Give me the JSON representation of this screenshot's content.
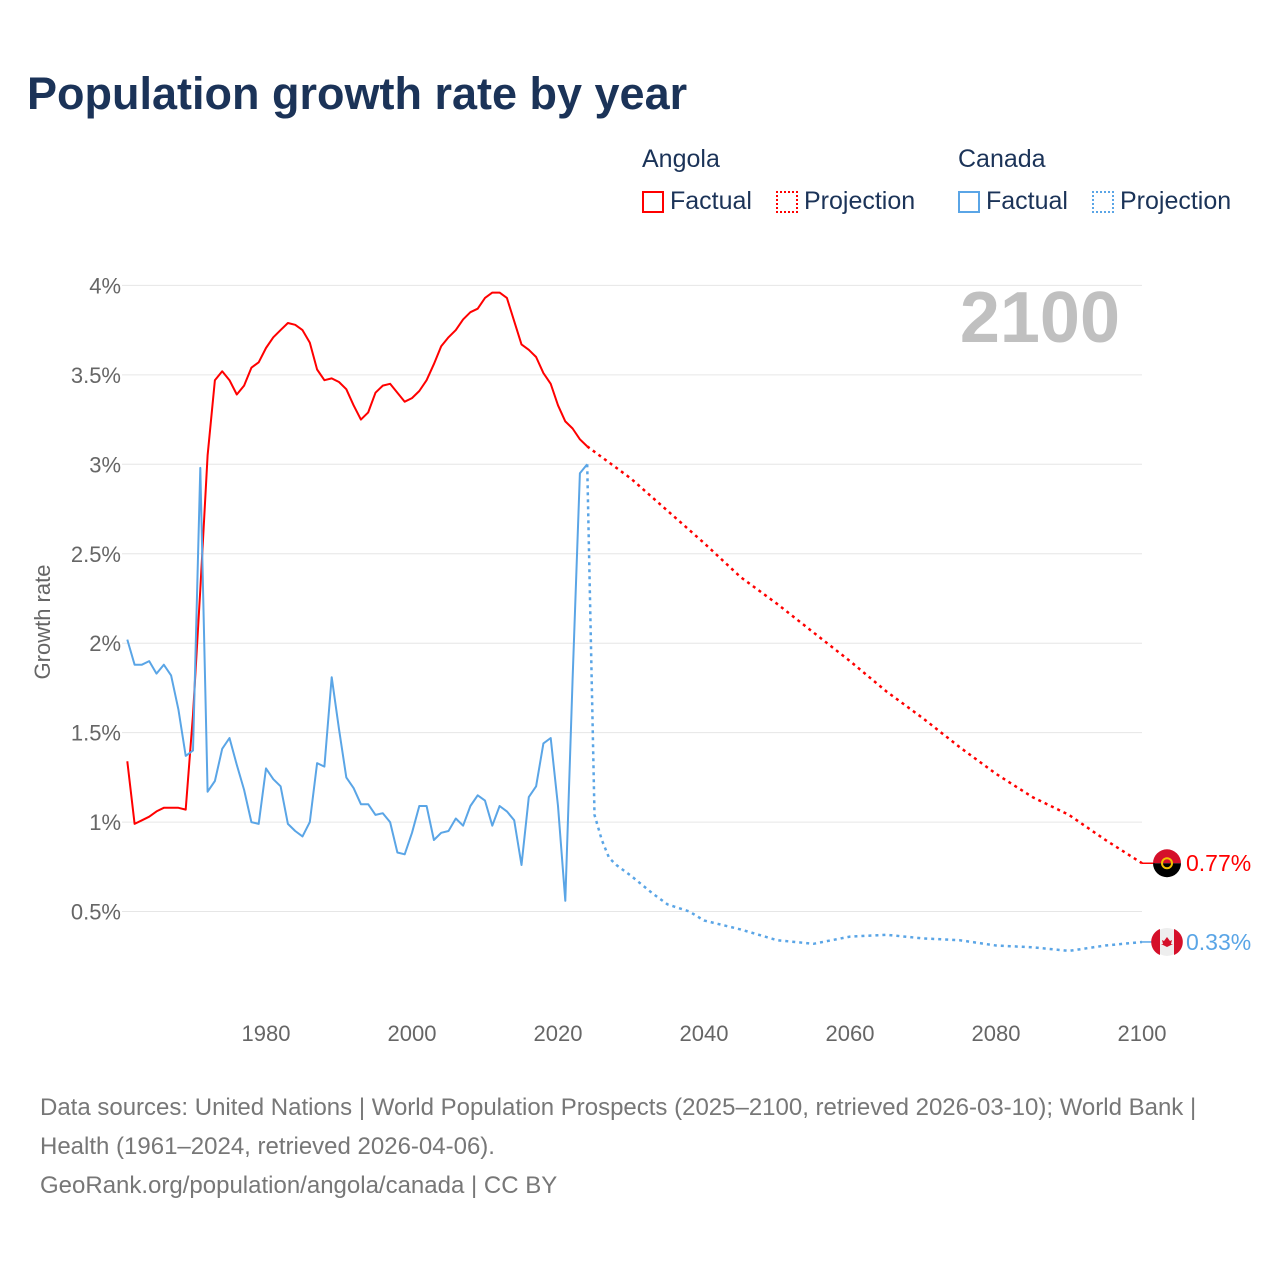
{
  "title": "Population growth rate by year",
  "legend": {
    "groups": [
      {
        "name": "Angola",
        "factual": "Factual",
        "projection": "Projection",
        "color": "#ff0000"
      },
      {
        "name": "Canada",
        "factual": "Factual",
        "projection": "Projection",
        "color": "#5aa5e6"
      }
    ]
  },
  "year_label": "2100",
  "footer": {
    "sources": "Data sources: United Nations | World Population Prospects (2025–2100, retrieved 2026-03-10); World Bank | Health (1961–2024, retrieved 2026-04-06).",
    "link": "GeoRank.org/population/angola/canada | CC BY"
  },
  "chart_data": {
    "type": "line",
    "ylabel": "Growth rate",
    "xlabel": "",
    "xlim": [
      1960,
      2100
    ],
    "ylim": [
      0,
      4
    ],
    "x_ticks": [
      "1980",
      "2000",
      "2020",
      "2040",
      "2060",
      "2080",
      "2100"
    ],
    "y_ticks": [
      "0.5%",
      "1%",
      "1.5%",
      "2%",
      "2.5%",
      "3%",
      "3.5%",
      "4%"
    ],
    "grid": true,
    "series": [
      {
        "name": "Angola",
        "color": "#ff0000",
        "end_label": "0.77%",
        "factual_start": 1961,
        "factual": [
          1.34,
          0.99,
          1.01,
          1.03,
          1.06,
          1.08,
          1.08,
          1.08,
          1.07,
          1.6,
          2.3,
          3.05,
          3.47,
          3.52,
          3.47,
          3.39,
          3.44,
          3.54,
          3.57,
          3.65,
          3.71,
          3.75,
          3.79,
          3.78,
          3.75,
          3.68,
          3.53,
          3.47,
          3.48,
          3.46,
          3.42,
          3.33,
          3.25,
          3.29,
          3.4,
          3.44,
          3.45,
          3.4,
          3.35,
          3.37,
          3.41,
          3.47,
          3.56,
          3.66,
          3.71,
          3.75,
          3.81,
          3.85,
          3.87,
          3.93,
          3.96,
          3.96,
          3.93,
          3.8,
          3.67,
          3.64,
          3.6,
          3.51,
          3.45,
          3.33,
          3.24,
          3.2,
          3.14,
          3.1
        ],
        "projection": [
          [
            2024,
            3.1
          ],
          [
            2025,
            3.07
          ],
          [
            2030,
            2.92
          ],
          [
            2035,
            2.74
          ],
          [
            2040,
            2.56
          ],
          [
            2045,
            2.37
          ],
          [
            2050,
            2.22
          ],
          [
            2055,
            2.06
          ],
          [
            2060,
            1.9
          ],
          [
            2065,
            1.73
          ],
          [
            2070,
            1.58
          ],
          [
            2075,
            1.42
          ],
          [
            2080,
            1.27
          ],
          [
            2085,
            1.14
          ],
          [
            2090,
            1.04
          ],
          [
            2095,
            0.9
          ],
          [
            2100,
            0.77
          ]
        ]
      },
      {
        "name": "Canada",
        "color": "#5aa5e6",
        "end_label": "0.33%",
        "factual_start": 1961,
        "factual": [
          2.02,
          1.88,
          1.88,
          1.9,
          1.83,
          1.88,
          1.82,
          1.63,
          1.37,
          1.4,
          2.98,
          1.17,
          1.23,
          1.41,
          1.47,
          1.32,
          1.18,
          1.0,
          0.99,
          1.3,
          1.24,
          1.2,
          0.99,
          0.95,
          0.92,
          1.0,
          1.33,
          1.31,
          1.81,
          1.52,
          1.25,
          1.19,
          1.1,
          1.1,
          1.04,
          1.05,
          1.0,
          0.83,
          0.82,
          0.94,
          1.09,
          1.09,
          0.9,
          0.94,
          0.95,
          1.02,
          0.98,
          1.09,
          1.15,
          1.12,
          0.98,
          1.09,
          1.06,
          1.01,
          0.76,
          1.14,
          1.2,
          1.44,
          1.47,
          1.09,
          0.56,
          1.8,
          2.95,
          3.0
        ],
        "projection": [
          [
            2024,
            3.0
          ],
          [
            2025,
            1.04
          ],
          [
            2026,
            0.9
          ],
          [
            2027,
            0.8
          ],
          [
            2028,
            0.76
          ],
          [
            2030,
            0.7
          ],
          [
            2033,
            0.6
          ],
          [
            2035,
            0.54
          ],
          [
            2038,
            0.5
          ],
          [
            2040,
            0.45
          ],
          [
            2045,
            0.4
          ],
          [
            2050,
            0.34
          ],
          [
            2055,
            0.32
          ],
          [
            2060,
            0.36
          ],
          [
            2065,
            0.37
          ],
          [
            2070,
            0.35
          ],
          [
            2075,
            0.34
          ],
          [
            2080,
            0.31
          ],
          [
            2085,
            0.3
          ],
          [
            2090,
            0.28
          ],
          [
            2095,
            0.31
          ],
          [
            2100,
            0.33
          ]
        ]
      }
    ]
  }
}
